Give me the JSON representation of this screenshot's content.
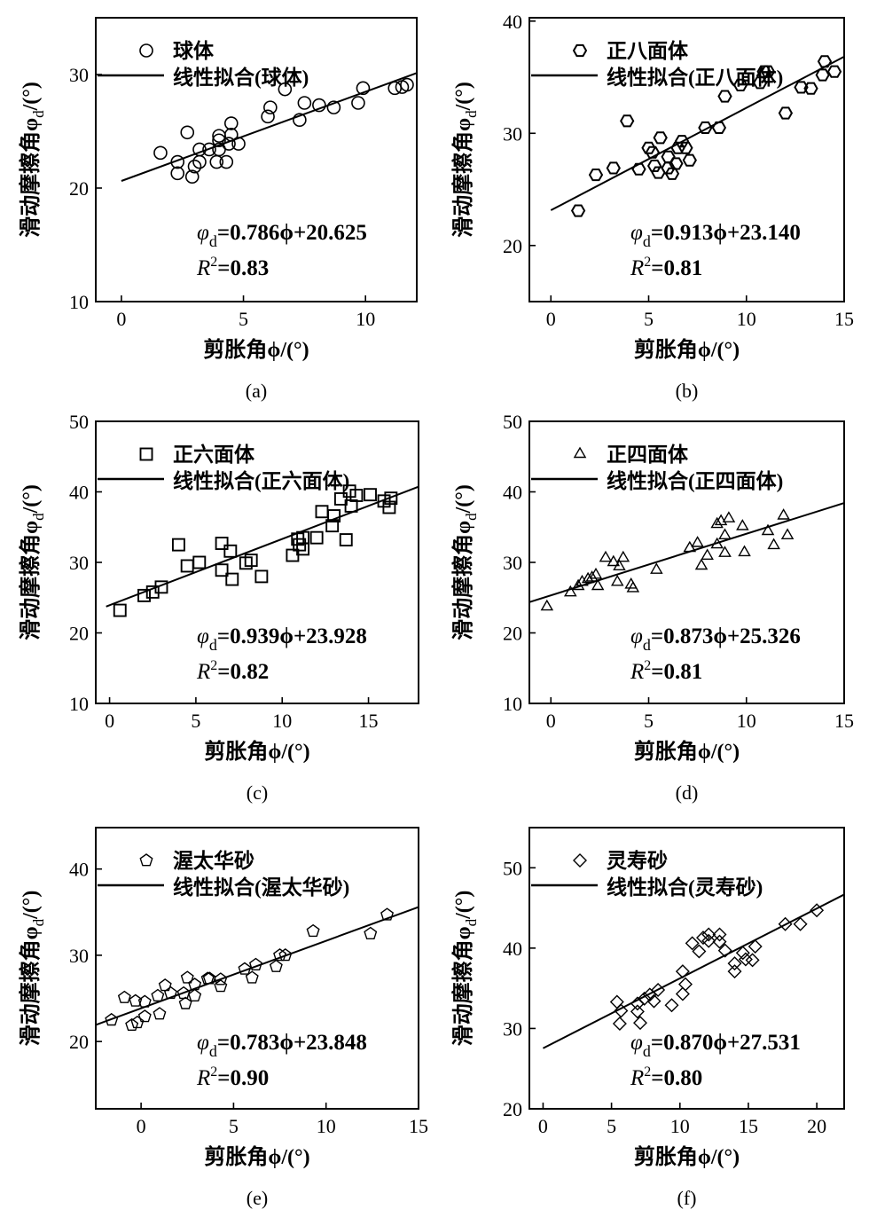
{
  "chart_data": [
    {
      "type": "scatter",
      "panel": "(a)",
      "xlabel": "剪胀角ϕ/(°)",
      "ylabel": {
        "text": "滑动摩擦角φ",
        "sub": "d",
        "suffix": "/(°)"
      },
      "xlim": [
        -1.05,
        12.1
      ],
      "ylim": [
        10,
        35
      ],
      "xticks": [
        0,
        5,
        10
      ],
      "yticks": [
        10,
        20,
        30
      ],
      "marker": "circle",
      "legend": {
        "placement": "top-left",
        "series": "球体",
        "fit": "线性拟合(球体)"
      },
      "fit": {
        "slope": 0.786,
        "intercept": 20.625,
        "range": [
          0,
          12.1
        ]
      },
      "equation": {
        "var": "φ",
        "sub": "d",
        "rhs": "=0.786ϕ+20.625"
      },
      "r2": {
        "var": "R",
        "sup": "2",
        "rhs": "=0.83"
      },
      "points": [
        [
          1.6,
          23.1
        ],
        [
          2.3,
          22.3
        ],
        [
          2.3,
          21.3
        ],
        [
          2.7,
          24.9
        ],
        [
          2.9,
          21.0
        ],
        [
          3.0,
          21.9
        ],
        [
          3.2,
          23.4
        ],
        [
          3.2,
          22.3
        ],
        [
          3.6,
          23.4
        ],
        [
          3.9,
          22.3
        ],
        [
          4.0,
          23.4
        ],
        [
          4.0,
          24.2
        ],
        [
          4.0,
          24.6
        ],
        [
          4.3,
          22.3
        ],
        [
          4.4,
          23.9
        ],
        [
          4.5,
          25.7
        ],
        [
          4.5,
          24.7
        ],
        [
          4.8,
          23.9
        ],
        [
          6.0,
          26.3
        ],
        [
          6.1,
          27.1
        ],
        [
          6.7,
          28.7
        ],
        [
          7.3,
          26.0
        ],
        [
          7.5,
          27.5
        ],
        [
          8.1,
          27.3
        ],
        [
          8.7,
          27.1
        ],
        [
          9.7,
          27.5
        ],
        [
          9.9,
          28.8
        ],
        [
          11.2,
          28.8
        ],
        [
          11.5,
          28.9
        ],
        [
          11.7,
          29.1
        ]
      ]
    },
    {
      "type": "scatter",
      "panel": "(b)",
      "xlabel": "剪胀角ϕ/(°)",
      "ylabel": {
        "text": "滑动摩擦角φ",
        "sub": "d",
        "suffix": "/(°)"
      },
      "xlim": [
        -1.1,
        15
      ],
      "ylim": [
        15,
        40.3
      ],
      "xticks": [
        0,
        5,
        10,
        15
      ],
      "yticks": [
        20,
        30,
        40
      ],
      "marker": "hexagon",
      "legend": {
        "placement": "top-left",
        "series": "正八面体",
        "fit": "线性拟合(正八面体)"
      },
      "fit": {
        "slope": 0.913,
        "intercept": 23.14,
        "range": [
          0,
          15
        ]
      },
      "equation": {
        "var": "φ",
        "sub": "d",
        "rhs": "=0.913ϕ+23.140"
      },
      "r2": {
        "var": "R",
        "sup": "2",
        "rhs": "=0.81"
      },
      "points": [
        [
          1.4,
          23.1
        ],
        [
          2.3,
          26.3
        ],
        [
          3.2,
          26.9
        ],
        [
          3.9,
          31.1
        ],
        [
          4.5,
          26.8
        ],
        [
          5.0,
          28.7
        ],
        [
          5.2,
          28.3
        ],
        [
          5.3,
          27.1
        ],
        [
          5.5,
          26.5
        ],
        [
          5.6,
          29.6
        ],
        [
          6.0,
          26.9
        ],
        [
          6.0,
          27.9
        ],
        [
          6.2,
          26.4
        ],
        [
          6.4,
          27.3
        ],
        [
          6.5,
          28.7
        ],
        [
          6.7,
          29.3
        ],
        [
          6.9,
          28.7
        ],
        [
          7.1,
          27.6
        ],
        [
          7.9,
          30.5
        ],
        [
          8.6,
          30.5
        ],
        [
          8.9,
          33.3
        ],
        [
          9.7,
          34.3
        ],
        [
          10.7,
          34.5
        ],
        [
          10.9,
          35.5
        ],
        [
          11.1,
          35.5
        ],
        [
          12.0,
          31.8
        ],
        [
          12.8,
          34.1
        ],
        [
          13.3,
          34.0
        ],
        [
          13.9,
          35.2
        ],
        [
          14.0,
          36.4
        ],
        [
          14.5,
          35.5
        ]
      ]
    },
    {
      "type": "scatter",
      "panel": "(c)",
      "xlabel": "剪胀角ϕ/(°)",
      "ylabel": {
        "text": "滑动摩擦角φ",
        "sub": "d",
        "suffix": "/(°)"
      },
      "xlim": [
        -0.8,
        17.9
      ],
      "ylim": [
        10,
        50
      ],
      "xticks": [
        0,
        5,
        10,
        15
      ],
      "yticks": [
        10,
        20,
        30,
        40,
        50
      ],
      "marker": "square",
      "legend": {
        "placement": "top-left",
        "series": "正六面体",
        "fit": "线性拟合(正六面体)"
      },
      "fit": {
        "slope": 0.939,
        "intercept": 23.928,
        "range": [
          -0.2,
          17.9
        ]
      },
      "equation": {
        "var": "φ",
        "sub": "d",
        "rhs": "=0.939ϕ+23.928"
      },
      "r2": {
        "var": "R",
        "sup": "2",
        "rhs": "=0.82"
      },
      "points": [
        [
          0.6,
          23.2
        ],
        [
          2.0,
          25.3
        ],
        [
          2.5,
          25.8
        ],
        [
          3.0,
          26.5
        ],
        [
          4.0,
          32.5
        ],
        [
          4.5,
          29.5
        ],
        [
          5.2,
          30.0
        ],
        [
          6.5,
          32.7
        ],
        [
          6.5,
          28.9
        ],
        [
          7.0,
          31.6
        ],
        [
          7.1,
          27.6
        ],
        [
          7.9,
          29.9
        ],
        [
          8.2,
          30.3
        ],
        [
          8.8,
          28.0
        ],
        [
          10.6,
          31.0
        ],
        [
          10.9,
          33.3
        ],
        [
          11.0,
          32.5
        ],
        [
          11.2,
          31.9
        ],
        [
          11.2,
          33.5
        ],
        [
          12.0,
          33.5
        ],
        [
          12.3,
          37.2
        ],
        [
          13.0,
          36.6
        ],
        [
          12.9,
          35.2
        ],
        [
          13.4,
          39.0
        ],
        [
          13.7,
          33.2
        ],
        [
          13.9,
          40.1
        ],
        [
          14.0,
          38.0
        ],
        [
          14.3,
          39.5
        ],
        [
          15.1,
          39.6
        ],
        [
          15.9,
          38.7
        ],
        [
          16.2,
          37.8
        ],
        [
          16.3,
          39.1
        ]
      ]
    },
    {
      "type": "scatter",
      "panel": "(d)",
      "xlabel": "剪胀角ϕ/(°)",
      "ylabel": {
        "text": "滑动摩擦角φ",
        "sub": "d",
        "suffix": "/(°)"
      },
      "xlim": [
        -1.1,
        15
      ],
      "ylim": [
        10,
        50
      ],
      "xticks": [
        0,
        5,
        10,
        15
      ],
      "yticks": [
        10,
        20,
        30,
        40,
        50
      ],
      "marker": "triangle",
      "legend": {
        "placement": "top-left",
        "series": "正四面体",
        "fit": "线性拟合(正四面体)"
      },
      "fit": {
        "slope": 0.873,
        "intercept": 25.326,
        "range": [
          -1.1,
          15
        ]
      },
      "equation": {
        "var": "φ",
        "sub": "d",
        "rhs": "=0.873ϕ+25.326"
      },
      "r2": {
        "var": "R",
        "sup": "2",
        "rhs": "=0.81"
      },
      "points": [
        [
          -0.2,
          23.7
        ],
        [
          1.0,
          25.7
        ],
        [
          1.4,
          26.6
        ],
        [
          1.6,
          27.2
        ],
        [
          1.9,
          27.6
        ],
        [
          2.1,
          27.8
        ],
        [
          2.3,
          28.2
        ],
        [
          2.4,
          26.6
        ],
        [
          2.8,
          30.6
        ],
        [
          3.2,
          30.0
        ],
        [
          3.5,
          29.4
        ],
        [
          3.7,
          30.6
        ],
        [
          3.4,
          27.2
        ],
        [
          4.1,
          26.8
        ],
        [
          4.2,
          26.3
        ],
        [
          5.4,
          28.9
        ],
        [
          7.1,
          32.0
        ],
        [
          7.5,
          32.7
        ],
        [
          7.7,
          29.5
        ],
        [
          8.0,
          30.9
        ],
        [
          8.5,
          32.5
        ],
        [
          8.5,
          35.4
        ],
        [
          8.7,
          35.8
        ],
        [
          8.9,
          31.3
        ],
        [
          8.9,
          33.8
        ],
        [
          9.1,
          36.2
        ],
        [
          9.8,
          35.1
        ],
        [
          9.9,
          31.4
        ],
        [
          11.1,
          34.4
        ],
        [
          11.4,
          32.4
        ],
        [
          11.9,
          36.6
        ],
        [
          12.1,
          33.8
        ]
      ]
    },
    {
      "type": "scatter",
      "panel": "(e)",
      "xlabel": "剪胀角ϕ/(°)",
      "ylabel": {
        "text": "滑动摩擦角φ",
        "sub": "d",
        "suffix": "/(°)"
      },
      "xlim": [
        -2.45,
        15
      ],
      "ylim": [
        12.2,
        44.8
      ],
      "xticks": [
        0,
        5,
        10,
        15
      ],
      "yticks": [
        20,
        30,
        40
      ],
      "marker": "pentagon",
      "legend": {
        "placement": "top-left",
        "series": "渥太华砂",
        "fit": "线性拟合(渥太华砂)"
      },
      "fit": {
        "slope": 0.783,
        "intercept": 23.848,
        "range": [
          -2.45,
          15
        ]
      },
      "equation": {
        "var": "φ",
        "sub": "d",
        "rhs": "=0.783ϕ+23.848"
      },
      "r2": {
        "var": "R",
        "sup": "2",
        "rhs": "=0.90"
      },
      "points": [
        [
          -1.6,
          22.5
        ],
        [
          -0.9,
          25.1
        ],
        [
          -0.5,
          21.9
        ],
        [
          -0.3,
          24.7
        ],
        [
          -0.2,
          22.2
        ],
        [
          0.2,
          22.9
        ],
        [
          0.2,
          24.6
        ],
        [
          0.9,
          25.3
        ],
        [
          1.0,
          23.2
        ],
        [
          1.3,
          26.5
        ],
        [
          1.6,
          25.6
        ],
        [
          2.3,
          25.6
        ],
        [
          2.4,
          24.4
        ],
        [
          2.5,
          27.4
        ],
        [
          2.9,
          26.6
        ],
        [
          2.9,
          25.3
        ],
        [
          3.6,
          27.3
        ],
        [
          3.7,
          27.3
        ],
        [
          4.3,
          27.2
        ],
        [
          4.3,
          26.4
        ],
        [
          5.6,
          28.4
        ],
        [
          6.0,
          27.4
        ],
        [
          6.2,
          28.9
        ],
        [
          7.3,
          28.7
        ],
        [
          7.5,
          30.0
        ],
        [
          7.8,
          30.0
        ],
        [
          9.3,
          32.8
        ],
        [
          12.4,
          32.5
        ],
        [
          13.3,
          34.7
        ]
      ]
    },
    {
      "type": "scatter",
      "panel": "(f)",
      "xlabel": "剪胀角ϕ/(°)",
      "ylabel": {
        "text": "滑动摩擦角φ",
        "sub": "d",
        "suffix": "/(°)"
      },
      "xlim": [
        -1,
        22
      ],
      "ylim": [
        20,
        55
      ],
      "xticks": [
        0,
        5,
        10,
        15,
        20
      ],
      "yticks": [
        20,
        30,
        40,
        50
      ],
      "marker": "diamond",
      "legend": {
        "placement": "top-left",
        "series": "灵寿砂",
        "fit": "线性拟合(灵寿砂)"
      },
      "fit": {
        "slope": 0.87,
        "intercept": 27.531,
        "range": [
          0,
          22
        ]
      },
      "equation": {
        "var": "φ",
        "sub": "d",
        "rhs": "=0.870ϕ+27.531"
      },
      "r2": {
        "var": "R",
        "sup": "2",
        "rhs": "=0.80"
      },
      "points": [
        [
          5.4,
          33.3
        ],
        [
          5.7,
          32.2
        ],
        [
          5.6,
          30.6
        ],
        [
          6.9,
          33.1
        ],
        [
          6.9,
          32.1
        ],
        [
          7.1,
          30.7
        ],
        [
          7.4,
          33.7
        ],
        [
          7.8,
          34.2
        ],
        [
          8.1,
          33.4
        ],
        [
          8.4,
          34.8
        ],
        [
          9.4,
          32.9
        ],
        [
          10.2,
          37.1
        ],
        [
          10.4,
          35.5
        ],
        [
          10.2,
          34.3
        ],
        [
          10.9,
          40.6
        ],
        [
          11.4,
          39.6
        ],
        [
          11.7,
          41.3
        ],
        [
          12.1,
          41.7
        ],
        [
          12.1,
          40.9
        ],
        [
          12.9,
          41.7
        ],
        [
          12.9,
          40.8
        ],
        [
          13.3,
          39.7
        ],
        [
          14.0,
          38.1
        ],
        [
          14.0,
          37.1
        ],
        [
          14.6,
          39.4
        ],
        [
          14.8,
          38.6
        ],
        [
          15.3,
          38.5
        ],
        [
          15.5,
          40.2
        ],
        [
          17.7,
          43.0
        ],
        [
          18.8,
          43.0
        ],
        [
          20.0,
          44.7
        ]
      ]
    }
  ]
}
